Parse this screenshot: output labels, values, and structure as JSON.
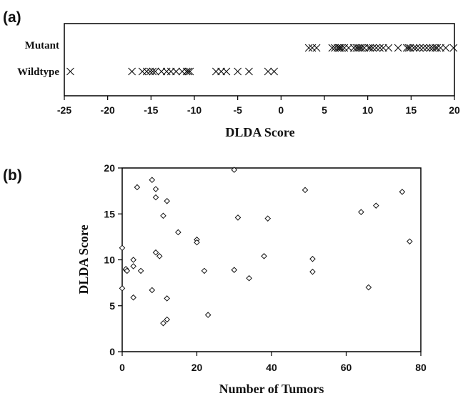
{
  "chart_data": [
    {
      "panel_label": "(a)",
      "type": "scatter",
      "marker": "x",
      "xlabel": "DLDA Score",
      "xlim": [
        -25,
        20
      ],
      "xticks": [
        -25,
        -20,
        -15,
        -10,
        -5,
        0,
        5,
        10,
        15,
        20
      ],
      "categories": [
        "Mutant",
        "Wildtype"
      ],
      "series": [
        {
          "name": "Mutant",
          "values": [
            3.2,
            3.6,
            4.1,
            5.9,
            6.2,
            6.5,
            6.7,
            6.8,
            7.0,
            7.3,
            7.8,
            8.4,
            8.7,
            8.9,
            9.1,
            9.3,
            9.6,
            10.1,
            10.3,
            10.6,
            11.0,
            11.4,
            11.8,
            12.4,
            13.5,
            14.5,
            14.7,
            14.9,
            15.3,
            15.6,
            16.0,
            16.4,
            16.8,
            17.2,
            17.5,
            17.8,
            18.0,
            18.4,
            19.0,
            19.9
          ]
        },
        {
          "name": "Wildtype",
          "values": [
            -24.3,
            -17.2,
            -16.0,
            -15.5,
            -15.1,
            -14.8,
            -14.5,
            -13.8,
            -13.2,
            -12.7,
            -12.1,
            -11.4,
            -10.9,
            -10.7,
            -10.5,
            -7.5,
            -6.9,
            -6.3,
            -5.0,
            -3.7,
            -1.5,
            -0.8
          ]
        }
      ]
    },
    {
      "panel_label": "(b)",
      "type": "scatter",
      "marker": "diamond",
      "xlabel": "Number of Tumors",
      "ylabel": "DLDA Score",
      "xlim": [
        0,
        80
      ],
      "ylim": [
        0,
        20
      ],
      "xticks": [
        0,
        20,
        40,
        60,
        80
      ],
      "yticks": [
        0,
        5,
        10,
        15,
        20
      ],
      "points": [
        {
          "x": 0,
          "y": 11.3
        },
        {
          "x": 0,
          "y": 6.9
        },
        {
          "x": 1,
          "y": 8.9
        },
        {
          "x": 1,
          "y": 9.0
        },
        {
          "x": 1.3,
          "y": 8.8
        },
        {
          "x": 3,
          "y": 10.0
        },
        {
          "x": 3,
          "y": 9.3
        },
        {
          "x": 3,
          "y": 5.9
        },
        {
          "x": 4,
          "y": 17.9
        },
        {
          "x": 5,
          "y": 8.8
        },
        {
          "x": 8,
          "y": 18.7
        },
        {
          "x": 8,
          "y": 6.7
        },
        {
          "x": 9,
          "y": 17.7
        },
        {
          "x": 9,
          "y": 16.8
        },
        {
          "x": 9,
          "y": 10.8
        },
        {
          "x": 10,
          "y": 10.4
        },
        {
          "x": 11,
          "y": 14.8
        },
        {
          "x": 11,
          "y": 3.1
        },
        {
          "x": 12,
          "y": 16.4
        },
        {
          "x": 12,
          "y": 5.8
        },
        {
          "x": 12,
          "y": 3.5
        },
        {
          "x": 15,
          "y": 13.0
        },
        {
          "x": 20,
          "y": 12.2
        },
        {
          "x": 20,
          "y": 11.9
        },
        {
          "x": 22,
          "y": 8.8
        },
        {
          "x": 23,
          "y": 4.0
        },
        {
          "x": 30,
          "y": 19.8
        },
        {
          "x": 30,
          "y": 8.9
        },
        {
          "x": 31,
          "y": 14.6
        },
        {
          "x": 34,
          "y": 8.0
        },
        {
          "x": 38,
          "y": 10.4
        },
        {
          "x": 39,
          "y": 14.5
        },
        {
          "x": 49,
          "y": 17.6
        },
        {
          "x": 51,
          "y": 10.1
        },
        {
          "x": 51,
          "y": 8.7
        },
        {
          "x": 64,
          "y": 15.2
        },
        {
          "x": 66,
          "y": 7.0
        },
        {
          "x": 68,
          "y": 15.9
        },
        {
          "x": 75,
          "y": 17.4
        },
        {
          "x": 77,
          "y": 12.0
        }
      ]
    }
  ]
}
